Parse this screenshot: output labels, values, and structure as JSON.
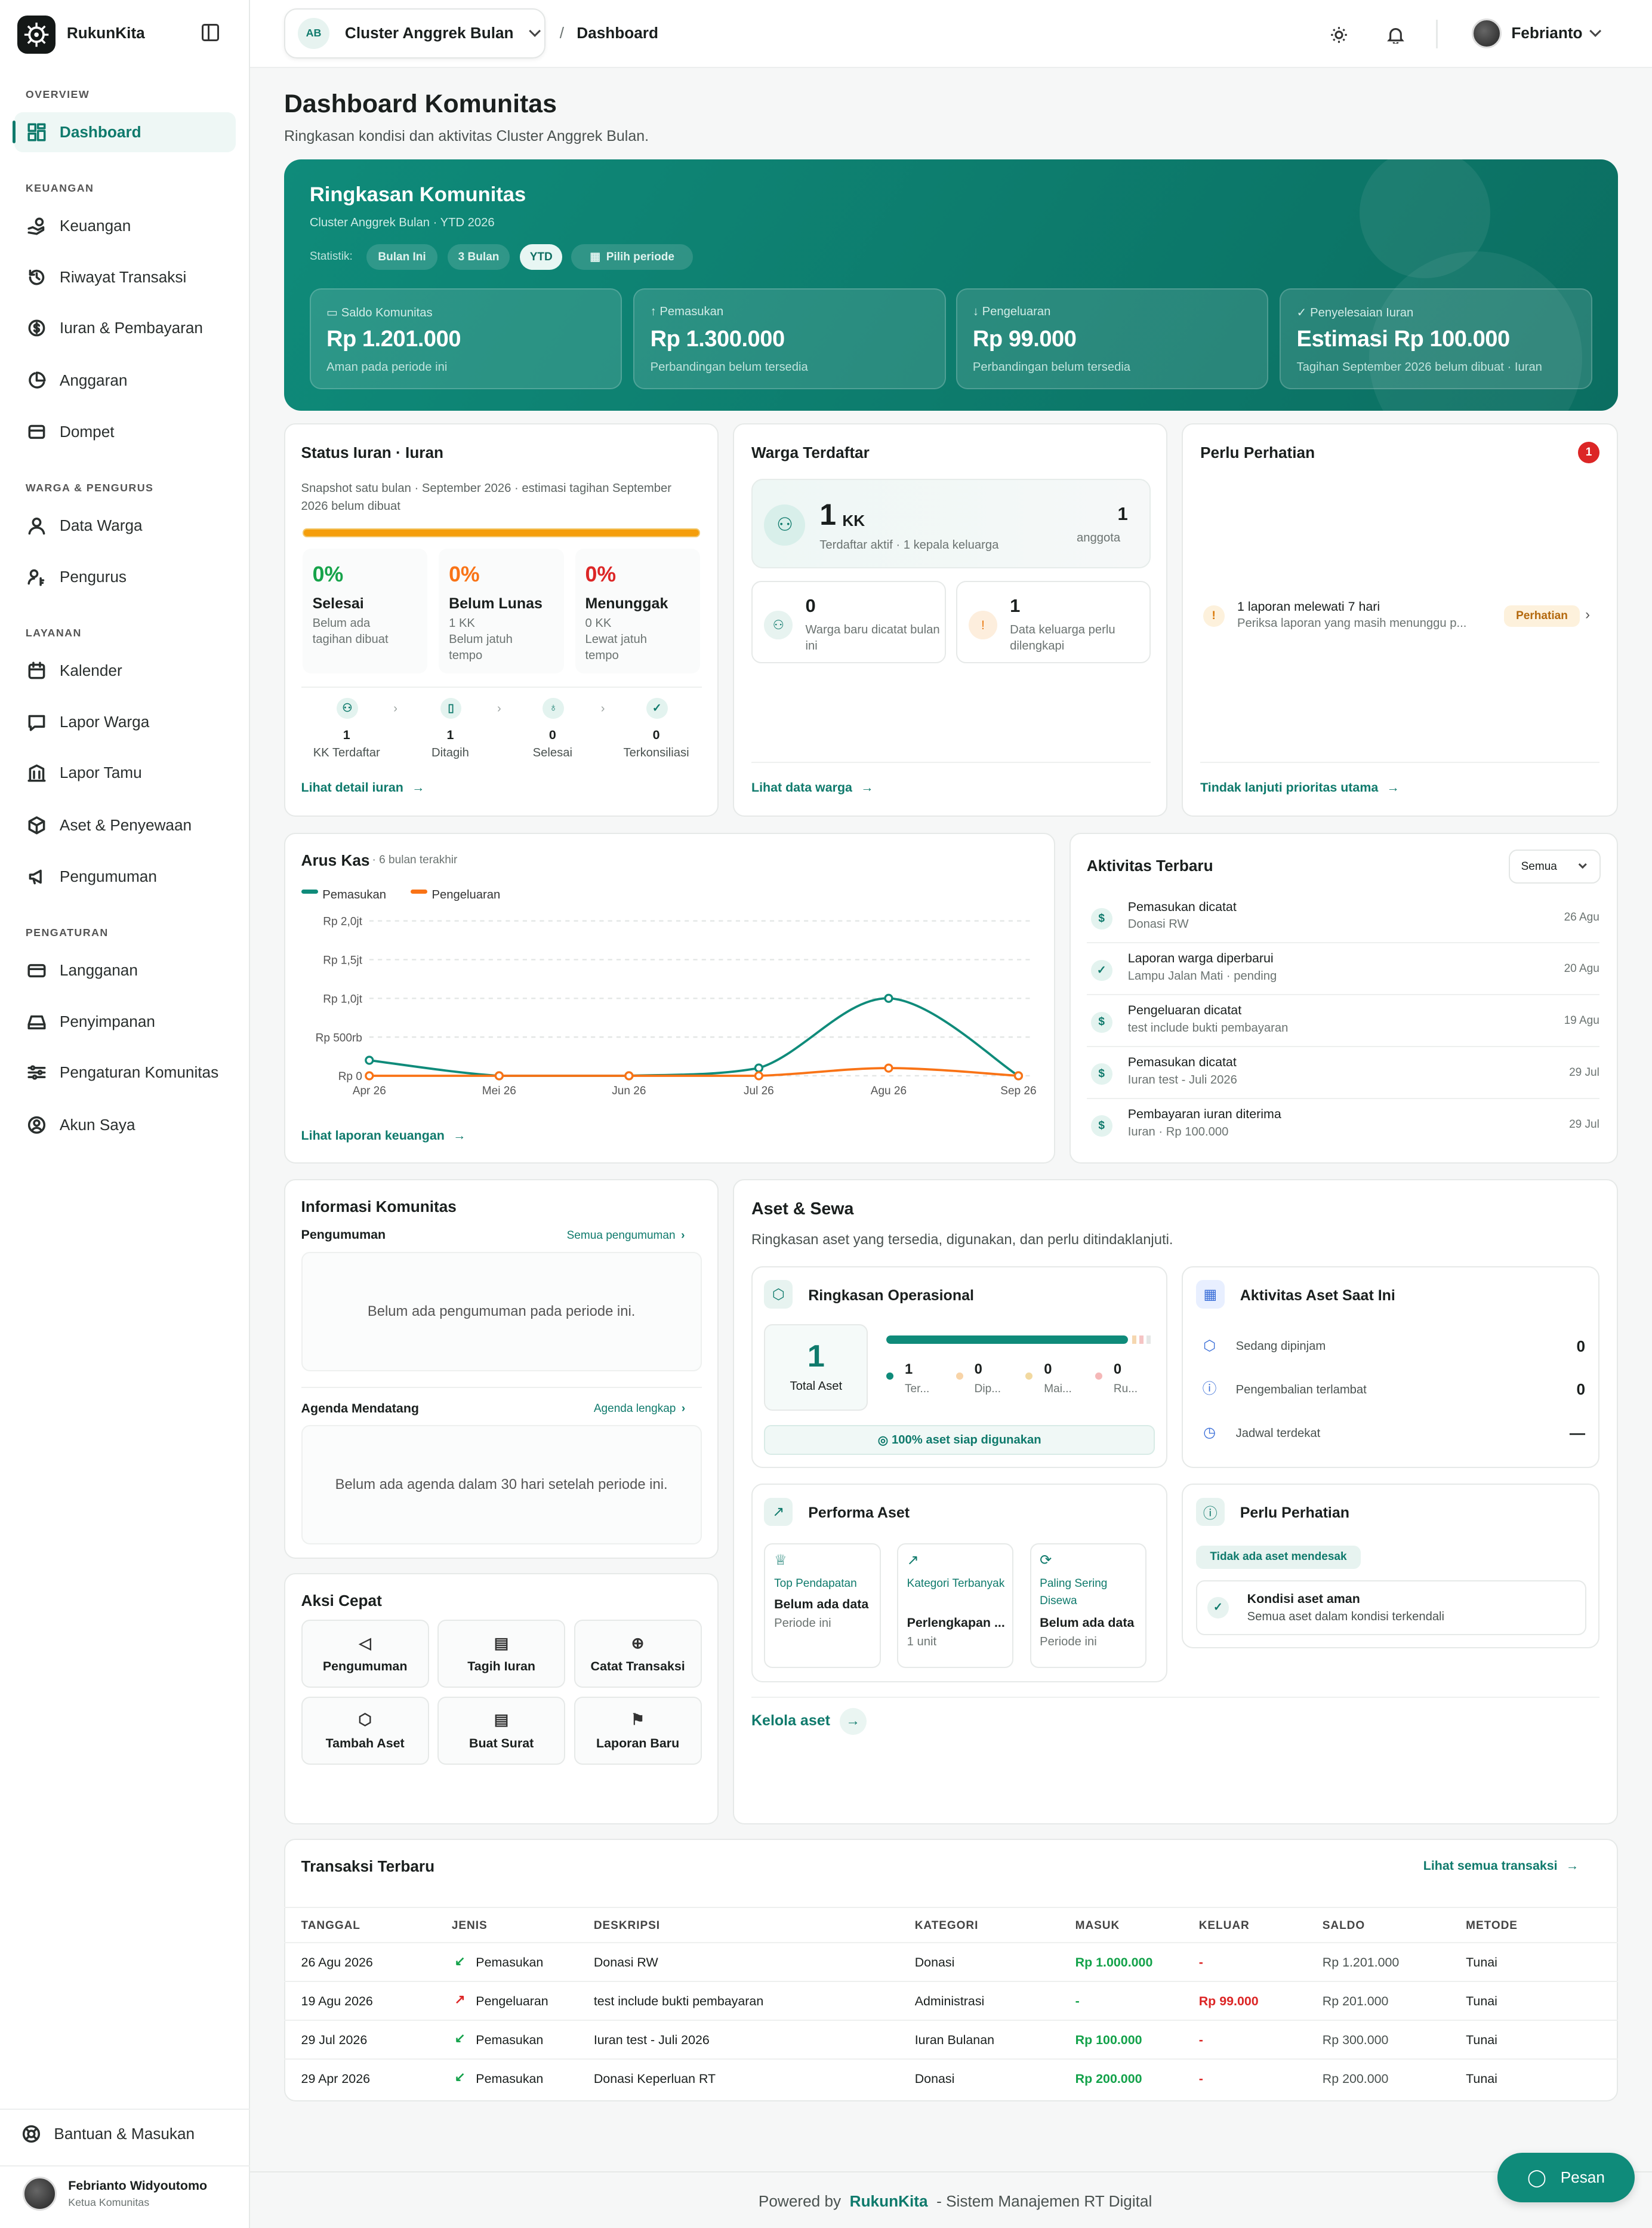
{
  "colors": {
    "primary": "#0f7a6c",
    "income": "#0f8b7a",
    "expense": "#f97316",
    "danger": "#dc2626"
  },
  "app": {
    "name": "RukunKita",
    "logo_icon": "rukun-logo-icon"
  },
  "sidebar": {
    "sections": {
      "overview": "OVERVIEW",
      "keuangan": "KEUANGAN",
      "warga": "WARGA & PENGURUS",
      "layanan": "LAYANAN",
      "pengaturan": "PENGATURAN"
    },
    "items": {
      "dashboard": "Dashboard",
      "keuangan": "Keuangan",
      "riwayat": "Riwayat Transaksi",
      "iuran": "Iuran & Pembayaran",
      "anggaran": "Anggaran",
      "dompet": "Dompet",
      "data_warga": "Data Warga",
      "pengurus": "Pengurus",
      "kalender": "Kalender",
      "lapor_warga": "Lapor Warga",
      "lapor_tamu": "Lapor Tamu",
      "aset": "Aset & Penyewaan",
      "pengumuman": "Pengumuman",
      "langganan": "Langganan",
      "penyimpanan": "Penyimpanan",
      "pengaturan_komunitas": "Pengaturan Komunitas",
      "akun": "Akun Saya"
    },
    "help": "Bantuan & Masukan",
    "user": {
      "name": "Febrianto Widyoutomo",
      "role": "Ketua Komunitas"
    }
  },
  "topbar": {
    "org_initials": "AB",
    "org_name": "Cluster Anggrek Bulan",
    "sep": "/",
    "breadcrumb": "Dashboard",
    "user": "Febrianto"
  },
  "page": {
    "title": "Dashboard Komunitas",
    "subtitle": "Ringkasan kondisi dan aktivitas Cluster Anggrek Bulan."
  },
  "hero": {
    "title": "Ringkasan Komunitas",
    "subtitle": "Cluster Anggrek Bulan · YTD 2026",
    "stat_label": "Statistik:",
    "filters": [
      "Bulan Ini",
      "3 Bulan",
      "YTD"
    ],
    "period": "Pilih periode",
    "stats": [
      {
        "label": "Saldo Komunitas",
        "value": "Rp 1.201.000",
        "sub": "Aman pada periode ini"
      },
      {
        "label": "Pemasukan",
        "value": "Rp 1.300.000",
        "sub": "Perbandingan belum tersedia"
      },
      {
        "label": "Pengeluaran",
        "value": "Rp 99.000",
        "sub": "Perbandingan belum tersedia"
      },
      {
        "label": "Penyelesaian Iuran",
        "value": "Estimasi Rp 100.000",
        "sub": "Tagihan September 2026 belum dibuat · Iuran"
      }
    ]
  },
  "iuran": {
    "title": "Status Iuran · Iuran",
    "desc": "Snapshot satu bulan · September 2026 · estimasi tagihan September 2026 belum dibuat",
    "cols": [
      {
        "pct": "0%",
        "label": "Selesai",
        "sub1": "Belum ada",
        "sub2": "tagihan dibuat"
      },
      {
        "pct": "0%",
        "label": "Belum Lunas",
        "sub1": "1 KK",
        "sub2": "Belum jatuh",
        "sub3": "tempo"
      },
      {
        "pct": "0%",
        "label": "Menunggak",
        "sub1": "0 KK",
        "sub2": "Lewat jatuh",
        "sub3": "tempo"
      }
    ],
    "steps": [
      {
        "n": "1",
        "l": "KK Terdaftar"
      },
      {
        "n": "1",
        "l": "Ditagih"
      },
      {
        "n": "0",
        "l": "Selesai"
      },
      {
        "n": "0",
        "l": "Terkonsiliasi"
      }
    ],
    "link": "Lihat detail iuran"
  },
  "warga": {
    "title": "Warga Terdaftar",
    "kk": "1",
    "kk_unit": "KK",
    "kk_sub": "Terdaftar aktif · 1 kepala keluarga",
    "anggota": "1",
    "anggota_label": "anggota",
    "baru_n": "0",
    "baru_l": "Warga baru dicatat bulan ini",
    "lengkap_n": "1",
    "lengkap_l": "Data keluarga perlu dilengkapi",
    "link": "Lihat data warga"
  },
  "perhatian": {
    "title": "Perlu Perhatian",
    "badge": "1",
    "item_title": "1 laporan melewati 7 hari",
    "item_sub": "Periksa laporan yang masih menunggu p...",
    "tag": "Perhatian",
    "link": "Tindak lanjuti prioritas utama"
  },
  "chart_data": {
    "type": "line",
    "title": "Arus Kas",
    "subtitle": "· 6 bulan terakhir",
    "categories": [
      "Apr 26",
      "Mei 26",
      "Jun 26",
      "Jul 26",
      "Agu 26",
      "Sep 26"
    ],
    "yticks": [
      "Rp 0",
      "Rp 500rb",
      "Rp 1,0jt",
      "Rp 1,5jt",
      "Rp 2,0jt"
    ],
    "ylim": [
      0,
      2000000
    ],
    "series": [
      {
        "name": "Pemasukan",
        "color": "#0f8b7a",
        "values": [
          200000,
          0,
          0,
          100000,
          1000000,
          0
        ]
      },
      {
        "name": "Pengeluaran",
        "color": "#f97316",
        "values": [
          0,
          0,
          0,
          0,
          99000,
          0
        ]
      }
    ],
    "link": "Lihat laporan keuangan"
  },
  "aktivitas": {
    "title": "Aktivitas Terbaru",
    "filter": "Semua",
    "items": [
      {
        "t": "Pemasukan dicatat",
        "s": "Donasi RW",
        "d": "26 Agu",
        "i": "$"
      },
      {
        "t": "Laporan warga diperbarui",
        "s": "Lampu Jalan Mati · pending",
        "d": "20 Agu",
        "i": "✓"
      },
      {
        "t": "Pengeluaran dicatat",
        "s": "test include bukti pembayaran",
        "d": "19 Agu",
        "i": "$"
      },
      {
        "t": "Pemasukan dicatat",
        "s": "Iuran test - Juli 2026",
        "d": "29 Jul",
        "i": "$"
      },
      {
        "t": "Pembayaran iuran diterima",
        "s": "Iuran · Rp 100.000",
        "d": "29 Jul",
        "i": "$"
      }
    ]
  },
  "info": {
    "title": "Informasi Komunitas",
    "peng_label": "Pengumuman",
    "peng_link": "Semua pengumuman",
    "peng_empty": "Belum ada pengumuman pada periode ini.",
    "agenda_label": "Agenda Mendatang",
    "agenda_link": "Agenda lengkap",
    "agenda_empty": "Belum ada agenda dalam 30 hari setelah periode ini."
  },
  "aksi": {
    "title": "Aksi Cepat",
    "items": [
      "Pengumuman",
      "Tagih Iuran",
      "Catat Transaksi",
      "Tambah Aset",
      "Buat Surat",
      "Laporan Baru"
    ]
  },
  "aset": {
    "title": "Aset & Sewa",
    "desc": "Ringkasan aset yang tersedia, digunakan, dan perlu ditindaklanjuti.",
    "ops_title": "Ringkasan Operasional",
    "total": "1",
    "total_label": "Total Aset",
    "ready_fraction": 1.0,
    "dots": [
      {
        "n": "1",
        "l": "Ter..."
      },
      {
        "n": "0",
        "l": "Dip..."
      },
      {
        "n": "0",
        "l": "Mai..."
      },
      {
        "n": "0",
        "l": "Ru..."
      }
    ],
    "ready": "100% aset siap digunakan",
    "act_title": "Aktivitas Aset Saat Ini",
    "act": [
      {
        "l": "Sedang dipinjam",
        "v": "0"
      },
      {
        "l": "Pengembalian terlambat",
        "v": "0"
      },
      {
        "l": "Jadwal terdekat",
        "v": "—"
      }
    ],
    "perf_title": "Performa Aset",
    "perf": [
      {
        "k": "Top Pendapatan",
        "v": "Belum ada data",
        "s": "Periode ini"
      },
      {
        "k": "Kategori Terbanyak",
        "v": "Perlengkapan ...",
        "s": "1 unit"
      },
      {
        "k": "Paling Sering Disewa",
        "v": "Belum ada data",
        "s": "Periode ini"
      }
    ],
    "att_title": "Perlu Perhatian",
    "att_tag": "Tidak ada aset mendesak",
    "att_item": "Kondisi aset aman",
    "att_sub": "Semua aset dalam kondisi terkendali",
    "link": "Kelola aset"
  },
  "transaksi": {
    "title": "Transaksi Terbaru",
    "link": "Lihat semua transaksi",
    "headers": [
      "TANGGAL",
      "JENIS",
      "DESKRIPSI",
      "KATEGORI",
      "MASUK",
      "KELUAR",
      "SALDO",
      "METODE"
    ],
    "rows": [
      [
        "26 Agu 2026",
        "Pemasukan",
        "Donasi RW",
        "Donasi",
        "Rp 1.000.000",
        "-",
        "Rp 1.201.000",
        "Tunai"
      ],
      [
        "19 Agu 2026",
        "Pengeluaran",
        "test include bukti pembayaran",
        "Administrasi",
        "-",
        "Rp 99.000",
        "Rp 201.000",
        "Tunai"
      ],
      [
        "29 Jul 2026",
        "Pemasukan",
        "Iuran test - Juli 2026",
        "Iuran Bulanan",
        "Rp 100.000",
        "-",
        "Rp 300.000",
        "Tunai"
      ],
      [
        "29 Apr 2026",
        "Pemasukan",
        "Donasi Keperluan RT",
        "Donasi",
        "Rp 200.000",
        "-",
        "Rp 200.000",
        "Tunai"
      ]
    ]
  },
  "footer": {
    "pre": "Powered by",
    "brand": "RukunKita",
    "post": "- Sistem Manajemen RT Digital",
    "chat": "Pesan"
  }
}
